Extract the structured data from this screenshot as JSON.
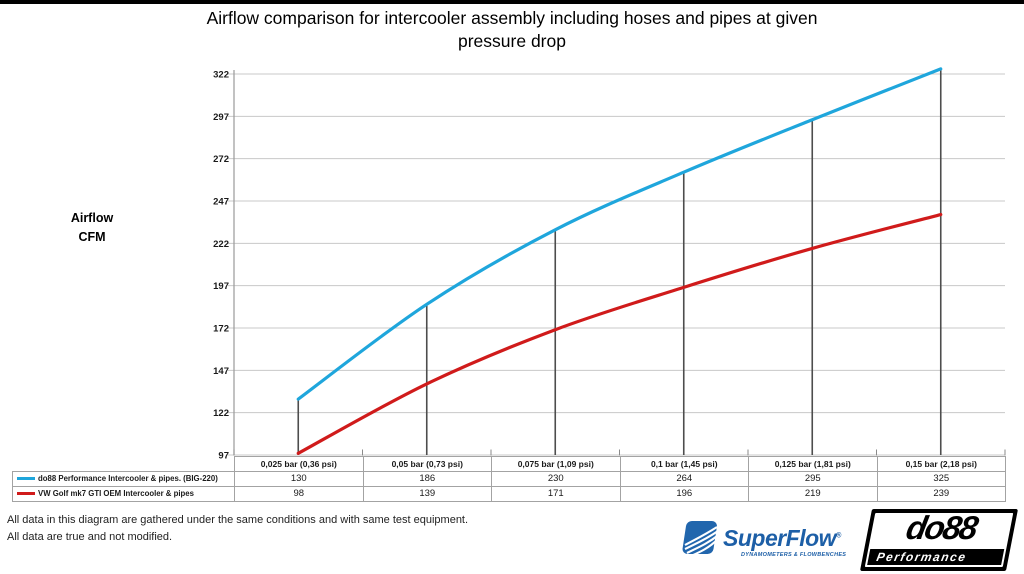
{
  "title": {
    "line1": "Airflow comparison for intercooler assembly including hoses and pipes at given",
    "line2": "pressure drop"
  },
  "y_axis_title": {
    "line1": "Airflow",
    "line2": "CFM"
  },
  "chart_data": {
    "type": "line",
    "categories": [
      "0,025 bar (0,36 psi)",
      "0,05 bar (0,73 psi)",
      "0,075 bar (1,09 psi)",
      "0,1 bar (1,45 psi)",
      "0,125 bar (1,81 psi)",
      "0,15 bar (2,18 psi)"
    ],
    "series": [
      {
        "name": "do88 Performance Intercooler & pipes. (BIG-220)",
        "color": "#1fa6dc",
        "values": [
          130,
          186,
          230,
          264,
          295,
          325
        ]
      },
      {
        "name": "VW Golf mk7 GTI OEM Intercooler & pipes",
        "color": "#d01b1b",
        "values": [
          98,
          139,
          171,
          196,
          219,
          239
        ]
      }
    ],
    "title": "Airflow comparison for intercooler assembly including hoses and pipes at given pressure drop",
    "xlabel": "",
    "ylabel": "Airflow CFM",
    "y_ticks": [
      97,
      122,
      147,
      172,
      197,
      222,
      247,
      272,
      297,
      322
    ],
    "ylim": [
      97,
      322
    ],
    "grid": true,
    "legend_position": "table-left",
    "droplines": "vertical line from first series point to category axis"
  },
  "footer": {
    "line1": "All data in this diagram are gathered under the same conditions and with same test equipment.",
    "line2": "All data are true and not modified."
  },
  "logos": {
    "superflow": {
      "name": "SuperFlow",
      "mark": "®",
      "tagline": "DYNAMOMETERS & FLOWBENCHES",
      "color": "#1d5fa7"
    },
    "do88": {
      "name": "do88",
      "tagline": "Performance",
      "color": "#000000"
    }
  },
  "colors": {
    "series_do88": "#1fa6dc",
    "series_oem": "#d01b1b",
    "gridline": "#c8c8c8",
    "axis": "#9a9a9a",
    "dropline": "#4d4d4d",
    "table_border": "#a3a3a3",
    "text": "#1a1a1a"
  }
}
